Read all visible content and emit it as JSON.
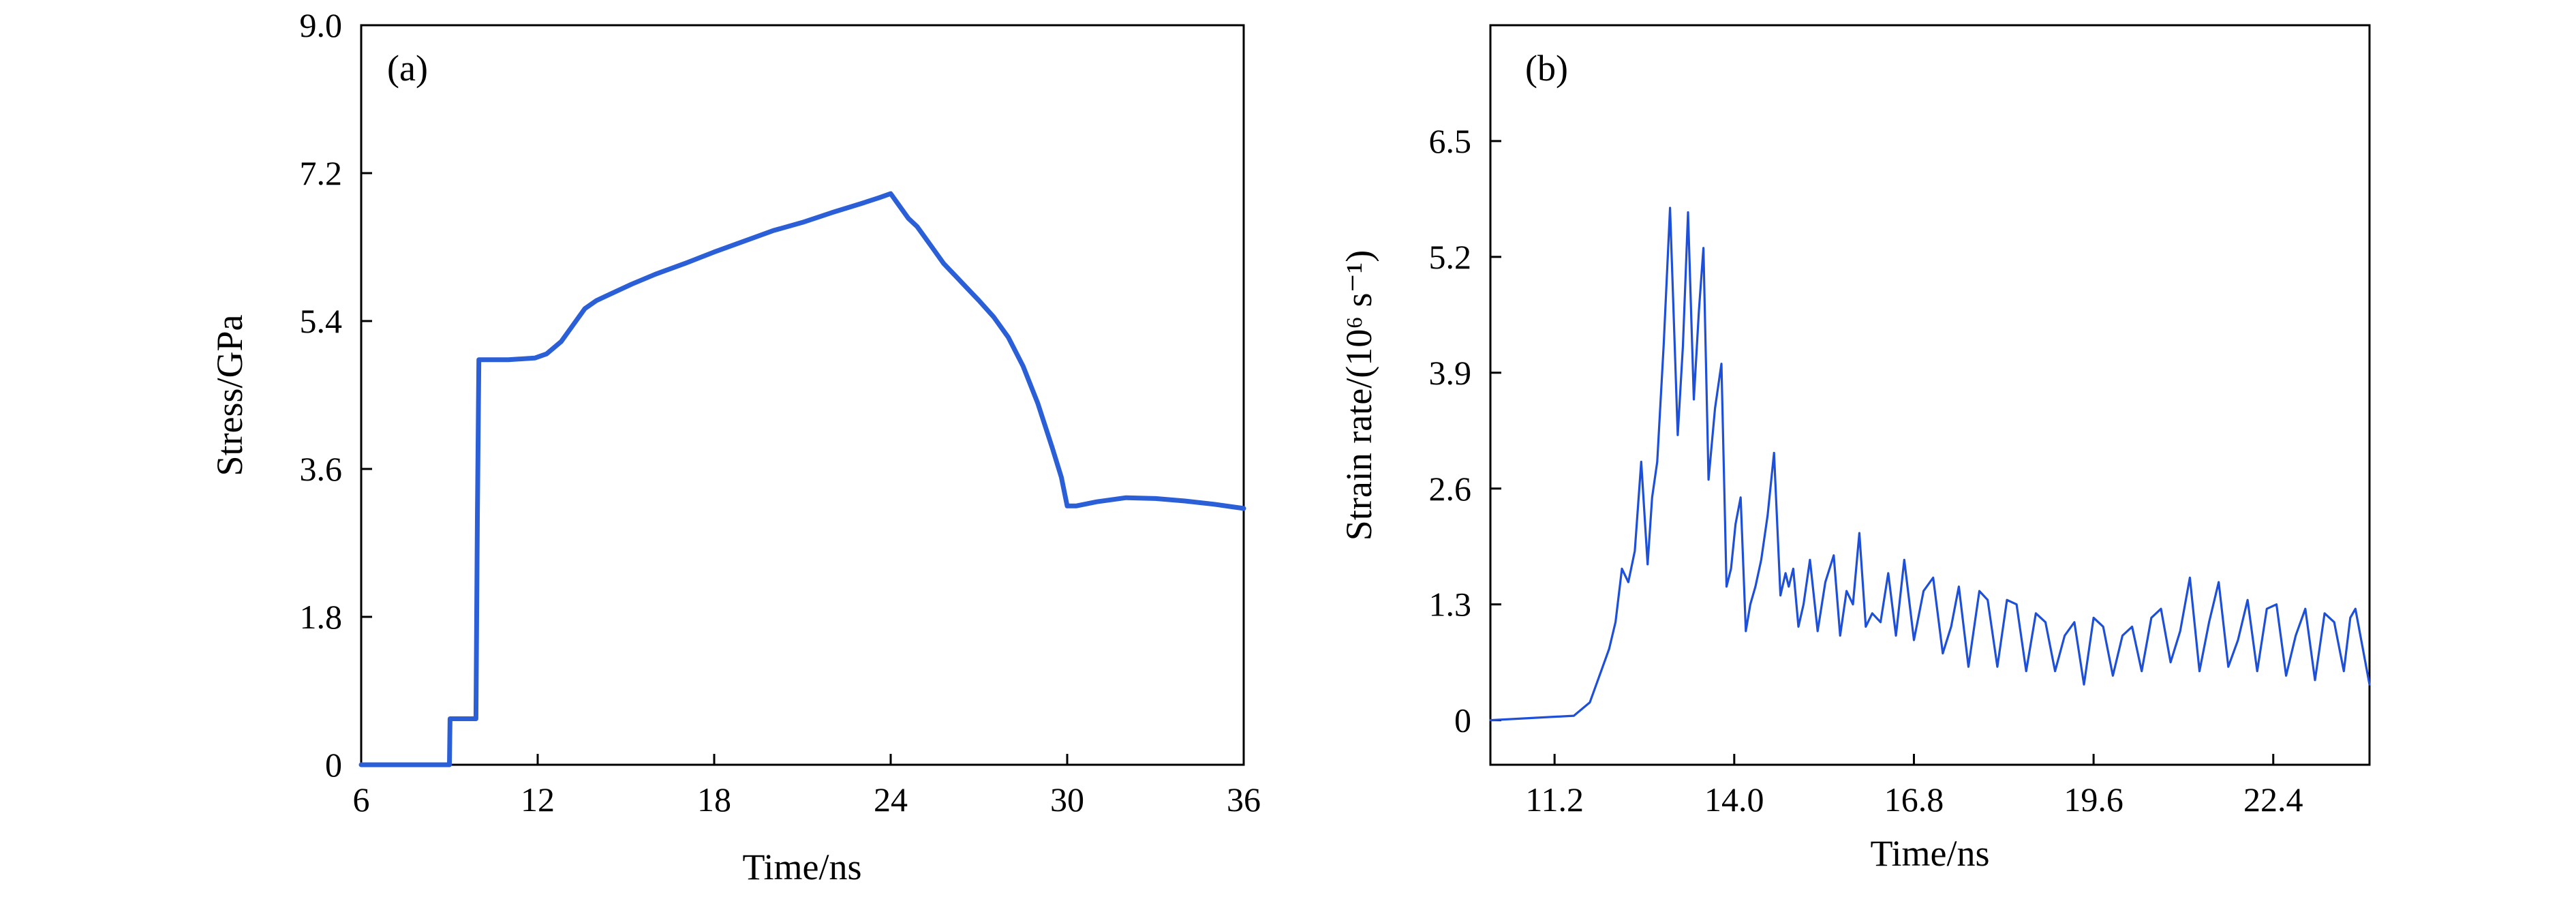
{
  "chart_data": [
    {
      "type": "line",
      "panel_label": "(a)",
      "xlabel": "Time/ns",
      "ylabel": "Stress/GPa",
      "xlim": [
        6,
        36
      ],
      "ylim": [
        0,
        9
      ],
      "xticks": [
        6,
        12,
        18,
        24,
        30,
        36
      ],
      "xtick_labels": [
        "6",
        "12",
        "18",
        "24",
        "30",
        "36"
      ],
      "yticks": [
        0,
        1.8,
        3.6,
        5.4,
        7.2,
        9.0
      ],
      "ytick_labels": [
        "0",
        "1.8",
        "3.6",
        "5.4",
        "7.2",
        "9.0"
      ],
      "grid": false,
      "color": "#2b5fd8",
      "series": [
        {
          "x": [
            6,
            9.0,
            9.02,
            9.9,
            9.95,
            10.0,
            10.1,
            11.0,
            11.9,
            12.3,
            12.8,
            13.2,
            13.6,
            14.0,
            14.6,
            15.2,
            16.0,
            17.0,
            18.0,
            19.0,
            20.0,
            21.0,
            22.0,
            23.0,
            23.6,
            24.0,
            24.2,
            24.6,
            24.9,
            25.2,
            25.5,
            25.8,
            26.2,
            26.6,
            27.0,
            27.5,
            28.0,
            28.5,
            29.0,
            29.5,
            29.8,
            30.0,
            30.3,
            31.0,
            32.0,
            33.0,
            34.0,
            35.0,
            35.6,
            36
          ],
          "y": [
            0,
            0,
            0.56,
            0.56,
            3.0,
            4.93,
            4.93,
            4.93,
            4.95,
            5.0,
            5.15,
            5.35,
            5.55,
            5.65,
            5.75,
            5.85,
            5.97,
            6.1,
            6.24,
            6.37,
            6.5,
            6.6,
            6.72,
            6.83,
            6.9,
            6.95,
            6.85,
            6.65,
            6.55,
            6.4,
            6.25,
            6.1,
            5.95,
            5.8,
            5.65,
            5.45,
            5.2,
            4.85,
            4.4,
            3.85,
            3.5,
            3.15,
            3.15,
            3.2,
            3.25,
            3.24,
            3.21,
            3.17,
            3.14,
            3.12
          ]
        }
      ]
    },
    {
      "type": "line",
      "panel_label": "(b)",
      "xlabel": "Time/ns",
      "ylabel": "Strain rate/(10⁶ s⁻¹)",
      "xlim": [
        10.2,
        23.9
      ],
      "ylim": [
        -0.5,
        7.8
      ],
      "xticks": [
        11.2,
        14.0,
        16.8,
        19.6,
        22.4
      ],
      "xtick_labels": [
        "11.2",
        "14.0",
        "16.8",
        "19.6",
        "22.4"
      ],
      "yticks": [
        0,
        1.3,
        2.6,
        3.9,
        5.2,
        6.5
      ],
      "ytick_labels": [
        "0",
        "1.3",
        "2.6",
        "3.9",
        "5.2",
        "6.5"
      ],
      "grid": false,
      "color": "#1d4fd8",
      "series": [
        {
          "x": [
            10.2,
            11.5,
            11.75,
            11.95,
            12.05,
            12.15,
            12.25,
            12.35,
            12.45,
            12.55,
            12.65,
            12.72,
            12.8,
            12.9,
            13.0,
            13.12,
            13.2,
            13.28,
            13.37,
            13.45,
            13.52,
            13.6,
            13.7,
            13.8,
            13.88,
            13.95,
            14.02,
            14.1,
            14.18,
            14.25,
            14.33,
            14.42,
            14.52,
            14.62,
            14.72,
            14.8,
            14.85,
            14.92,
            15.0,
            15.08,
            15.18,
            15.3,
            15.42,
            15.55,
            15.65,
            15.75,
            15.85,
            15.95,
            16.05,
            16.15,
            16.28,
            16.4,
            16.52,
            16.65,
            16.8,
            16.95,
            17.1,
            17.25,
            17.38,
            17.5,
            17.65,
            17.82,
            17.95,
            18.1,
            18.25,
            18.4,
            18.55,
            18.7,
            18.85,
            19.0,
            19.15,
            19.3,
            19.45,
            19.6,
            19.75,
            19.9,
            20.05,
            20.2,
            20.35,
            20.5,
            20.65,
            20.8,
            20.95,
            21.1,
            21.25,
            21.4,
            21.55,
            21.7,
            21.85,
            22.0,
            22.15,
            22.3,
            22.45,
            22.6,
            22.75,
            22.9,
            23.05,
            23.2,
            23.35,
            23.5,
            23.6,
            23.68,
            23.9
          ],
          "y": [
            0,
            0.05,
            0.2,
            0.6,
            0.8,
            1.1,
            1.7,
            1.55,
            1.9,
            2.9,
            1.75,
            2.5,
            2.9,
            4.2,
            5.75,
            3.2,
            4.2,
            5.7,
            3.6,
            4.6,
            5.3,
            2.7,
            3.5,
            4.0,
            1.5,
            1.7,
            2.2,
            2.5,
            1.0,
            1.3,
            1.5,
            1.8,
            2.3,
            3.0,
            1.4,
            1.65,
            1.5,
            1.7,
            1.05,
            1.3,
            1.8,
            1.0,
            1.55,
            1.85,
            0.95,
            1.45,
            1.3,
            2.1,
            1.05,
            1.2,
            1.1,
            1.65,
            0.95,
            1.8,
            0.9,
            1.45,
            1.6,
            0.75,
            1.05,
            1.5,
            0.6,
            1.45,
            1.35,
            0.6,
            1.35,
            1.3,
            0.55,
            1.2,
            1.1,
            0.55,
            0.95,
            1.1,
            0.4,
            1.15,
            1.05,
            0.5,
            0.95,
            1.05,
            0.55,
            1.15,
            1.25,
            0.65,
            1.0,
            1.6,
            0.55,
            1.1,
            1.55,
            0.6,
            0.9,
            1.35,
            0.55,
            1.25,
            1.3,
            0.5,
            0.95,
            1.25,
            0.45,
            1.2,
            1.1,
            0.55,
            1.15,
            1.25,
            0.4
          ]
        }
      ]
    }
  ]
}
